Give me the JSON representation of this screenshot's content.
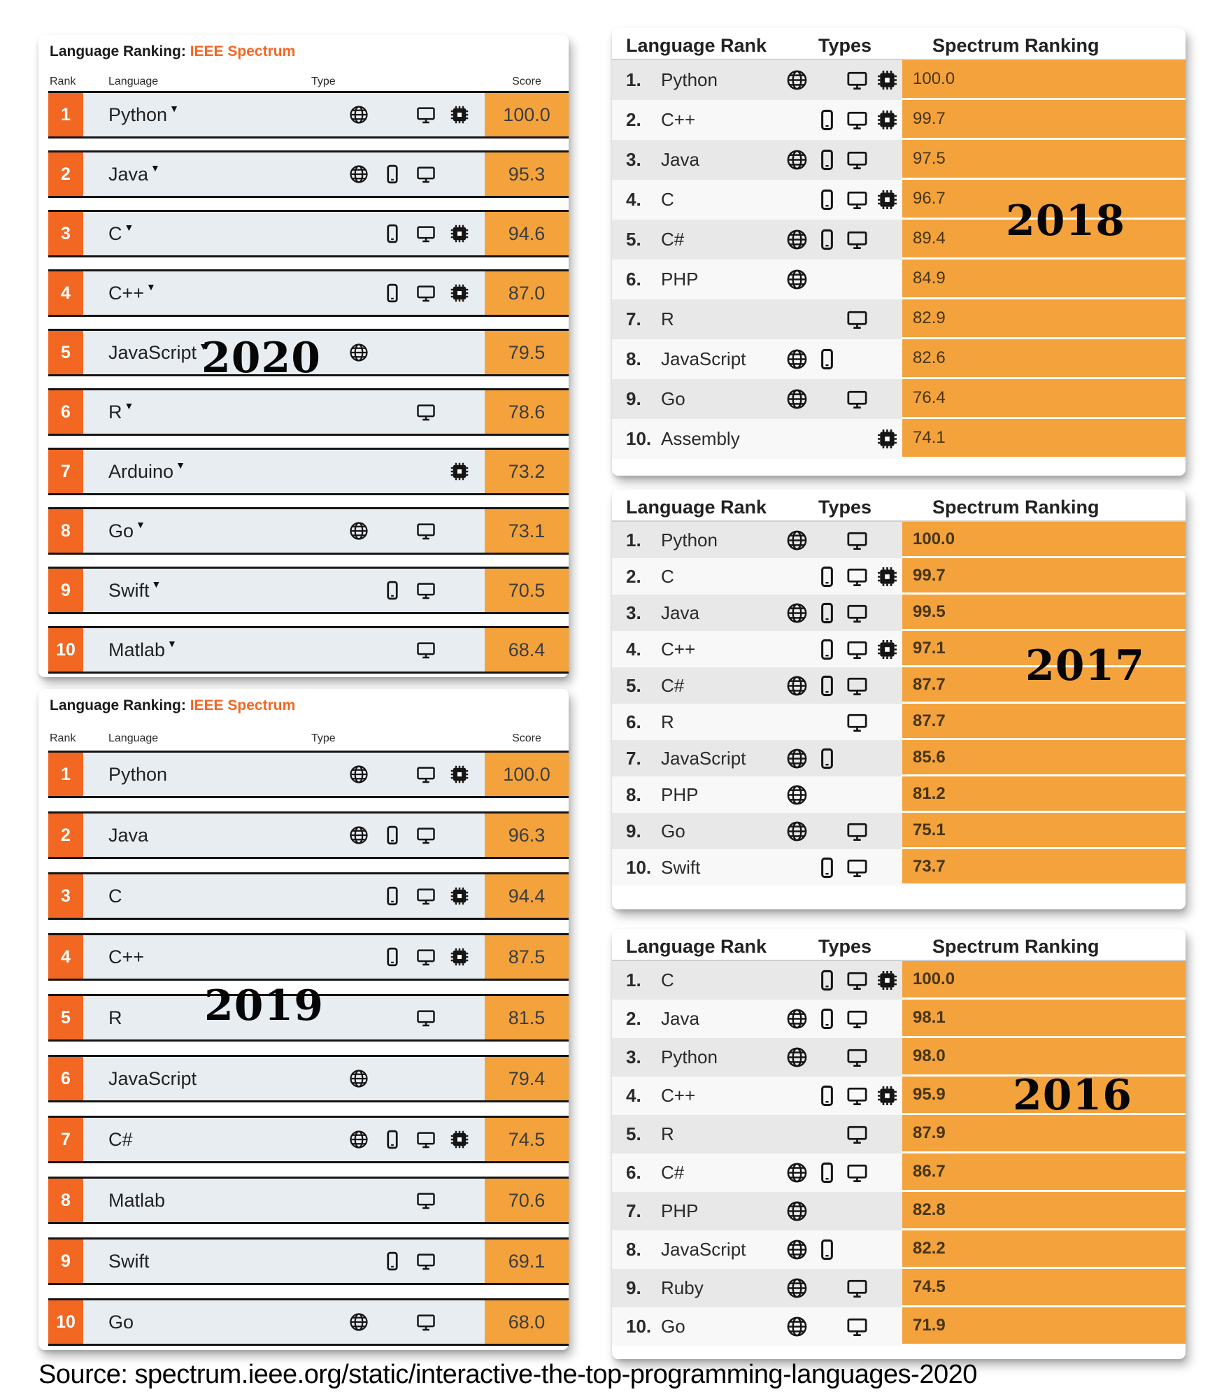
{
  "source_line": "Source: spectrum.ieee.org/static/interactive-the-top-programming-languages-2020",
  "colors": {
    "rank_orange": "#f26722",
    "score_orange": "#f4a23c",
    "left_row_bg": "#e8edf2",
    "right_row_gray": "#e8e8e8",
    "right_row_light": "#f8f8f8",
    "title_accent": "#f26722"
  },
  "icon_names": {
    "web": "globe-icon",
    "mobile": "smartphone-icon",
    "desktop": "monitor-icon",
    "embedded": "chip-icon"
  },
  "left_panels": [
    {
      "year_label": "2020",
      "title_black": "Language Ranking:",
      "title_orange": "IEEE Spectrum",
      "columns": [
        "Rank",
        "Language",
        "Type",
        "Score"
      ],
      "dropdown": true,
      "rows": [
        {
          "rank": "1",
          "language": "Python",
          "types": [
            "web",
            "desktop",
            "embedded"
          ],
          "score": "100.0"
        },
        {
          "rank": "2",
          "language": "Java",
          "types": [
            "web",
            "mobile",
            "desktop"
          ],
          "score": "95.3"
        },
        {
          "rank": "3",
          "language": "C",
          "types": [
            "mobile",
            "desktop",
            "embedded"
          ],
          "score": "94.6"
        },
        {
          "rank": "4",
          "language": "C++",
          "types": [
            "mobile",
            "desktop",
            "embedded"
          ],
          "score": "87.0"
        },
        {
          "rank": "5",
          "language": "JavaScript",
          "types": [
            "web"
          ],
          "score": "79.5"
        },
        {
          "rank": "6",
          "language": "R",
          "types": [
            "desktop"
          ],
          "score": "78.6"
        },
        {
          "rank": "7",
          "language": "Arduino",
          "types": [
            "embedded"
          ],
          "score": "73.2"
        },
        {
          "rank": "8",
          "language": "Go",
          "types": [
            "web",
            "desktop"
          ],
          "score": "73.1"
        },
        {
          "rank": "9",
          "language": "Swift",
          "types": [
            "mobile",
            "desktop"
          ],
          "score": "70.5"
        },
        {
          "rank": "10",
          "language": "Matlab",
          "types": [
            "desktop"
          ],
          "score": "68.4"
        }
      ]
    },
    {
      "year_label": "2019",
      "title_black": "Language Ranking:",
      "title_orange": "IEEE Spectrum",
      "columns": [
        "Rank",
        "Language",
        "Type",
        "Score"
      ],
      "dropdown": false,
      "rows": [
        {
          "rank": "1",
          "language": "Python",
          "types": [
            "web",
            "desktop",
            "embedded"
          ],
          "score": "100.0"
        },
        {
          "rank": "2",
          "language": "Java",
          "types": [
            "web",
            "mobile",
            "desktop"
          ],
          "score": "96.3"
        },
        {
          "rank": "3",
          "language": "C",
          "types": [
            "mobile",
            "desktop",
            "embedded"
          ],
          "score": "94.4"
        },
        {
          "rank": "4",
          "language": "C++",
          "types": [
            "mobile",
            "desktop",
            "embedded"
          ],
          "score": "87.5"
        },
        {
          "rank": "5",
          "language": "R",
          "types": [
            "desktop"
          ],
          "score": "81.5"
        },
        {
          "rank": "6",
          "language": "JavaScript",
          "types": [
            "web"
          ],
          "score": "79.4"
        },
        {
          "rank": "7",
          "language": "C#",
          "types": [
            "web",
            "mobile",
            "desktop",
            "embedded"
          ],
          "score": "74.5"
        },
        {
          "rank": "8",
          "language": "Matlab",
          "types": [
            "desktop"
          ],
          "score": "70.6"
        },
        {
          "rank": "9",
          "language": "Swift",
          "types": [
            "mobile",
            "desktop"
          ],
          "score": "69.1"
        },
        {
          "rank": "10",
          "language": "Go",
          "types": [
            "web",
            "desktop"
          ],
          "score": "68.0"
        }
      ]
    }
  ],
  "right_panels": [
    {
      "year_label": "2018",
      "columns": [
        "Language Rank",
        "Types",
        "Spectrum Ranking"
      ],
      "rows": [
        {
          "rank": "1.",
          "language": "Python",
          "types": [
            "web",
            "desktop",
            "embedded"
          ],
          "score": "100.0"
        },
        {
          "rank": "2.",
          "language": "C++",
          "types": [
            "mobile",
            "desktop",
            "embedded"
          ],
          "score": "99.7"
        },
        {
          "rank": "3.",
          "language": "Java",
          "types": [
            "web",
            "mobile",
            "desktop"
          ],
          "score": "97.5"
        },
        {
          "rank": "4.",
          "language": "C",
          "types": [
            "mobile",
            "desktop",
            "embedded"
          ],
          "score": "96.7"
        },
        {
          "rank": "5.",
          "language": "C#",
          "types": [
            "web",
            "mobile",
            "desktop"
          ],
          "score": "89.4"
        },
        {
          "rank": "6.",
          "language": "PHP",
          "types": [
            "web"
          ],
          "score": "84.9"
        },
        {
          "rank": "7.",
          "language": "R",
          "types": [
            "desktop"
          ],
          "score": "82.9"
        },
        {
          "rank": "8.",
          "language": "JavaScript",
          "types": [
            "web",
            "mobile"
          ],
          "score": "82.6"
        },
        {
          "rank": "9.",
          "language": "Go",
          "types": [
            "web",
            "desktop"
          ],
          "score": "76.4"
        },
        {
          "rank": "10.",
          "language": "Assembly",
          "types": [
            "embedded"
          ],
          "score": "74.1"
        }
      ]
    },
    {
      "year_label": "2017",
      "columns": [
        "Language Rank",
        "Types",
        "Spectrum Ranking"
      ],
      "rows": [
        {
          "rank": "1.",
          "language": "Python",
          "types": [
            "web",
            "desktop"
          ],
          "score": "100.0"
        },
        {
          "rank": "2.",
          "language": "C",
          "types": [
            "mobile",
            "desktop",
            "embedded"
          ],
          "score": "99.7"
        },
        {
          "rank": "3.",
          "language": "Java",
          "types": [
            "web",
            "mobile",
            "desktop"
          ],
          "score": "99.5"
        },
        {
          "rank": "4.",
          "language": "C++",
          "types": [
            "mobile",
            "desktop",
            "embedded"
          ],
          "score": "97.1"
        },
        {
          "rank": "5.",
          "language": "C#",
          "types": [
            "web",
            "mobile",
            "desktop"
          ],
          "score": "87.7"
        },
        {
          "rank": "6.",
          "language": "R",
          "types": [
            "desktop"
          ],
          "score": "87.7"
        },
        {
          "rank": "7.",
          "language": "JavaScript",
          "types": [
            "web",
            "mobile"
          ],
          "score": "85.6"
        },
        {
          "rank": "8.",
          "language": "PHP",
          "types": [
            "web"
          ],
          "score": "81.2"
        },
        {
          "rank": "9.",
          "language": "Go",
          "types": [
            "web",
            "desktop"
          ],
          "score": "75.1"
        },
        {
          "rank": "10.",
          "language": "Swift",
          "types": [
            "mobile",
            "desktop"
          ],
          "score": "73.7"
        }
      ]
    },
    {
      "year_label": "2016",
      "columns": [
        "Language Rank",
        "Types",
        "Spectrum Ranking"
      ],
      "rows": [
        {
          "rank": "1.",
          "language": "C",
          "types": [
            "mobile",
            "desktop",
            "embedded"
          ],
          "score": "100.0"
        },
        {
          "rank": "2.",
          "language": "Java",
          "types": [
            "web",
            "mobile",
            "desktop"
          ],
          "score": "98.1"
        },
        {
          "rank": "3.",
          "language": "Python",
          "types": [
            "web",
            "desktop"
          ],
          "score": "98.0"
        },
        {
          "rank": "4.",
          "language": "C++",
          "types": [
            "mobile",
            "desktop",
            "embedded"
          ],
          "score": "95.9"
        },
        {
          "rank": "5.",
          "language": "R",
          "types": [
            "desktop"
          ],
          "score": "87.9"
        },
        {
          "rank": "6.",
          "language": "C#",
          "types": [
            "web",
            "mobile",
            "desktop"
          ],
          "score": "86.7"
        },
        {
          "rank": "7.",
          "language": "PHP",
          "types": [
            "web"
          ],
          "score": "82.8"
        },
        {
          "rank": "8.",
          "language": "JavaScript",
          "types": [
            "web",
            "mobile"
          ],
          "score": "82.2"
        },
        {
          "rank": "9.",
          "language": "Ruby",
          "types": [
            "web",
            "desktop"
          ],
          "score": "74.5"
        },
        {
          "rank": "10.",
          "language": "Go",
          "types": [
            "web",
            "desktop"
          ],
          "score": "71.9"
        }
      ]
    }
  ],
  "chart_data": [
    {
      "type": "table",
      "title": "IEEE Spectrum Language Ranking 2020",
      "categories": [
        "Python",
        "Java",
        "C",
        "C++",
        "JavaScript",
        "R",
        "Arduino",
        "Go",
        "Swift",
        "Matlab"
      ],
      "values": [
        100.0,
        95.3,
        94.6,
        87.0,
        79.5,
        78.6,
        73.2,
        73.1,
        70.5,
        68.4
      ]
    },
    {
      "type": "table",
      "title": "IEEE Spectrum Language Ranking 2019",
      "categories": [
        "Python",
        "Java",
        "C",
        "C++",
        "R",
        "JavaScript",
        "C#",
        "Matlab",
        "Swift",
        "Go"
      ],
      "values": [
        100.0,
        96.3,
        94.4,
        87.5,
        81.5,
        79.4,
        74.5,
        70.6,
        69.1,
        68.0
      ]
    },
    {
      "type": "table",
      "title": "IEEE Spectrum Language Ranking 2018",
      "categories": [
        "Python",
        "C++",
        "Java",
        "C",
        "C#",
        "PHP",
        "R",
        "JavaScript",
        "Go",
        "Assembly"
      ],
      "values": [
        100.0,
        99.7,
        97.5,
        96.7,
        89.4,
        84.9,
        82.9,
        82.6,
        76.4,
        74.1
      ]
    },
    {
      "type": "table",
      "title": "IEEE Spectrum Language Ranking 2017",
      "categories": [
        "Python",
        "C",
        "Java",
        "C++",
        "C#",
        "R",
        "JavaScript",
        "PHP",
        "Go",
        "Swift"
      ],
      "values": [
        100.0,
        99.7,
        99.5,
        97.1,
        87.7,
        87.7,
        85.6,
        81.2,
        75.1,
        73.7
      ]
    },
    {
      "type": "table",
      "title": "IEEE Spectrum Language Ranking 2016",
      "categories": [
        "C",
        "Java",
        "Python",
        "C++",
        "R",
        "C#",
        "PHP",
        "JavaScript",
        "Ruby",
        "Go"
      ],
      "values": [
        100.0,
        98.1,
        98.0,
        95.9,
        87.9,
        86.7,
        82.8,
        82.2,
        74.5,
        71.9
      ]
    }
  ]
}
